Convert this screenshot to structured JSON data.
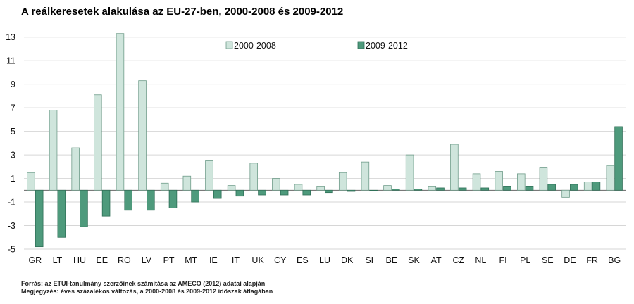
{
  "chart_data": {
    "type": "bar",
    "title": "A reálkeresetek alakulása az EU-27-ben, 2000-2008 és 2009-2012",
    "xlabel": "",
    "ylabel": "",
    "ylim": [
      -5,
      14
    ],
    "yticks": [
      13,
      11,
      9,
      7,
      5,
      3,
      1,
      -1,
      -3,
      -5
    ],
    "categories": [
      "GR",
      "LT",
      "HU",
      "EE",
      "RO",
      "LV",
      "PT",
      "MT",
      "IE",
      "IT",
      "UK",
      "CY",
      "ES",
      "LU",
      "DK",
      "SI",
      "BE",
      "SK",
      "AT",
      "CZ",
      "NL",
      "FI",
      "PL",
      "SE",
      "DE",
      "FR",
      "BG"
    ],
    "series": [
      {
        "name": "2000-2008",
        "color": "#cfe5dc",
        "stroke": "#6f9c8a",
        "values": [
          1.5,
          6.8,
          3.6,
          8.1,
          13.3,
          9.3,
          0.6,
          1.2,
          2.5,
          0.4,
          2.3,
          1.0,
          0.5,
          0.3,
          1.5,
          2.4,
          0.4,
          3.0,
          0.3,
          3.9,
          1.4,
          1.6,
          1.4,
          1.9,
          -0.6,
          0.7,
          2.1
        ]
      },
      {
        "name": "2009-2012",
        "color": "#4e9a7c",
        "stroke": "#2f6f57",
        "values": [
          -4.8,
          -4.0,
          -3.1,
          -2.2,
          -1.7,
          -1.7,
          -1.5,
          -1.0,
          -0.7,
          -0.5,
          -0.4,
          -0.4,
          -0.4,
          -0.2,
          -0.1,
          0.0,
          0.1,
          0.1,
          0.2,
          0.2,
          0.2,
          0.3,
          0.3,
          0.5,
          0.5,
          0.7,
          5.4
        ]
      }
    ],
    "legend": "top-center"
  },
  "notes": {
    "source": "Forrás: az ETUI-tanulmány szerzőinek számítása az AMECO (2012) adatai alapján",
    "remark": "Megjegyzés: éves százalékos változás, a 2000-2008 és 2009-2012 időszak átlagában"
  },
  "colors": {
    "grid": "#d6d6d6",
    "axis": "#000000",
    "text": "#111111"
  }
}
